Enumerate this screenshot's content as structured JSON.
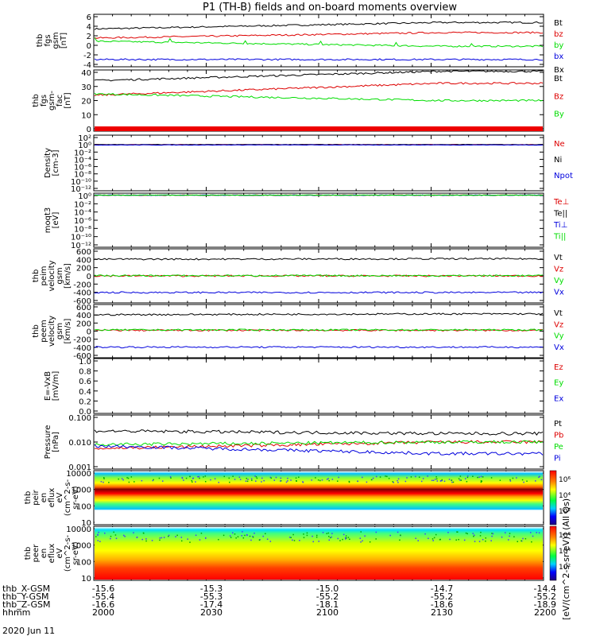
{
  "title": "P1  (TH-B) fields and on-board moments overview",
  "date_label": "2020 Jun 11",
  "colorbar_label": "[eV/(cm^2-s-sr-eV)] (All Qs)",
  "colorbar_ticks": [
    "10⁶",
    "10⁴",
    "10²"
  ],
  "colors": {
    "black": "#000000",
    "red": "#dd0000",
    "green": "#00dd00",
    "blue": "#0000dd"
  },
  "chart_data": {
    "type": "line",
    "time_axis": {
      "hhmm": [
        "2000",
        "2030",
        "2100",
        "2130",
        "2200"
      ],
      "rows": [
        {
          "label": "thb_X-GSM",
          "values": [
            "-15.6",
            "-15.3",
            "-15.0",
            "-14.7",
            "-14.4"
          ]
        },
        {
          "label": "thb_Y-GSM",
          "values": [
            "-55.4",
            "-55.3",
            "-55.2",
            "-55.2",
            "-55.2"
          ]
        },
        {
          "label": "thb_Z-GSM",
          "values": [
            "-16.6",
            "-17.4",
            "-18.1",
            "-18.6",
            "-18.9"
          ]
        },
        {
          "label": "hhmm",
          "values": [
            "2000",
            "2030",
            "2100",
            "2130",
            "2200"
          ]
        }
      ]
    },
    "panels": [
      {
        "id": "fgs",
        "ylabel": [
          "thb",
          "fgs",
          "gsm",
          "[nT]"
        ],
        "ticks": [
          "6",
          "4",
          "2",
          "0",
          "-2",
          "-4"
        ],
        "ylim": [
          -5,
          6.5
        ],
        "series": [
          {
            "name": "Bt",
            "color": "black",
            "start": 3.3,
            "end": 4.7
          },
          {
            "name": "bz",
            "color": "red",
            "start": 1.3,
            "end": 2.5
          },
          {
            "name": "by",
            "color": "green",
            "start": 0.6,
            "end": -0.5
          },
          {
            "name": "bx",
            "color": "blue",
            "start": -3.4,
            "end": -3.4
          }
        ]
      },
      {
        "id": "fgs-bars",
        "ylabel": [
          "thb",
          "fgs",
          "gsm-",
          "fac",
          "[nT]"
        ],
        "ticks": [
          "40",
          "30",
          "20",
          "10",
          "0"
        ],
        "ylim": [
          -5,
          41
        ],
        "legend_top": "Bx",
        "series": [
          {
            "name": "Bt",
            "color": "black",
            "start": 33,
            "end": 40
          },
          {
            "name": "Bz",
            "color": "red",
            "start": 22,
            "end": 31
          },
          {
            "name": "By",
            "color": "green",
            "start": 23,
            "end": 18
          }
        ]
      },
      {
        "id": "density",
        "ylabel": [
          "Density",
          "[cm-3]"
        ],
        "ticks": [
          "10²",
          "10⁰",
          "10⁻²",
          "10⁻⁴",
          "10⁻⁶",
          "10⁻⁸",
          "10⁻¹⁰",
          "10⁻¹²"
        ],
        "log": true,
        "ylim": [
          -13,
          2.3
        ],
        "series": [
          {
            "name": "Ne",
            "color": "red",
            "start": -0.3,
            "end": -0.3
          },
          {
            "name": "Ni",
            "color": "black",
            "start": -0.3,
            "end": -0.3
          },
          {
            "name": "Npot",
            "color": "blue",
            "start": -0.4,
            "end": -0.4
          }
        ]
      },
      {
        "id": "temp",
        "ylabel": [
          "moqt3",
          "[eV]"
        ],
        "ticks": [
          "10⁰",
          "10⁻²",
          "10⁻⁴",
          "10⁻⁶",
          "10⁻⁸",
          "10⁻¹⁰",
          "10⁻¹²"
        ],
        "log": true,
        "ylim": [
          -13,
          0.5
        ],
        "series": [
          {
            "name": "Te⊥",
            "color": "red",
            "start": 0,
            "end": 0
          },
          {
            "name": "Te||",
            "color": "black",
            "start": 0,
            "end": 0
          },
          {
            "name": "Ti⊥",
            "color": "blue",
            "start": 0,
            "end": 0
          },
          {
            "name": "Ti||",
            "color": "green",
            "start": 0,
            "end": 0
          }
        ]
      },
      {
        "id": "peim",
        "ylabel": [
          "thb",
          "peim",
          "velocity",
          "gsm",
          "[km/s]"
        ],
        "ticks": [
          "600",
          "400",
          "200",
          "0",
          "-200",
          "-400",
          "-600"
        ],
        "ylim": [
          -650,
          650
        ],
        "series": [
          {
            "name": "Vt",
            "color": "black",
            "start": 400,
            "end": 410
          },
          {
            "name": "Vz",
            "color": "red",
            "start": 0,
            "end": 0
          },
          {
            "name": "Vy",
            "color": "green",
            "start": 5,
            "end": 5
          },
          {
            "name": "Vx",
            "color": "blue",
            "start": -400,
            "end": -400
          }
        ]
      },
      {
        "id": "peem",
        "ylabel": [
          "thb",
          "peem",
          "velocity",
          "gsm",
          "[km/s]"
        ],
        "ticks": [
          "600",
          "400",
          "200",
          "0",
          "-200",
          "-400",
          "-600"
        ],
        "ylim": [
          -650,
          650
        ],
        "series": [
          {
            "name": "Vt",
            "color": "black",
            "start": 400,
            "end": 420
          },
          {
            "name": "Vz",
            "color": "red",
            "start": 20,
            "end": 20
          },
          {
            "name": "Vy",
            "color": "green",
            "start": 30,
            "end": 30
          },
          {
            "name": "Vx",
            "color": "blue",
            "start": -390,
            "end": -390
          }
        ]
      },
      {
        "id": "efield",
        "ylabel": [
          "E=-VxB",
          "[mV/m]"
        ],
        "ticks": [
          "1.0",
          "0.8",
          "0.6",
          "0.4",
          "0.2",
          "0.0"
        ],
        "ylim": [
          -0.05,
          1.02
        ],
        "series": [
          {
            "name": "Ez",
            "color": "red"
          },
          {
            "name": "Ey",
            "color": "green"
          },
          {
            "name": "Ex",
            "color": "blue"
          }
        ]
      },
      {
        "id": "pressure",
        "ylabel": [
          "Pressure",
          "[nPa]"
        ],
        "ticks": [
          "0.100",
          "0.010",
          "0.001"
        ],
        "log": true,
        "ylim": [
          -3,
          -0.9
        ],
        "series": [
          {
            "name": "Pt",
            "color": "black",
            "start": -1.52,
            "end": -1.62
          },
          {
            "name": "Pb",
            "color": "red",
            "start": -2.2,
            "end": -1.95
          },
          {
            "name": "Pe",
            "color": "green",
            "start": -2.05,
            "end": -1.95
          },
          {
            "name": "Pi",
            "color": "blue",
            "start": -2.1,
            "end": -2.4
          }
        ]
      },
      {
        "id": "peir",
        "ylabel": [
          "thb",
          "peir",
          "en",
          "eflux",
          "eV",
          "(cm^2-s-",
          "sr-eV)"
        ],
        "ticks": [
          "10000",
          "1000",
          "100",
          "10"
        ],
        "type": "spectrogram"
      },
      {
        "id": "peer",
        "ylabel": [
          "thb",
          "peer",
          "en",
          "eflux",
          "eV",
          "(cm^2-s-",
          "sr-eV)"
        ],
        "ticks": [
          "10000",
          "1000",
          "100",
          "10"
        ],
        "type": "spectrogram"
      }
    ]
  }
}
